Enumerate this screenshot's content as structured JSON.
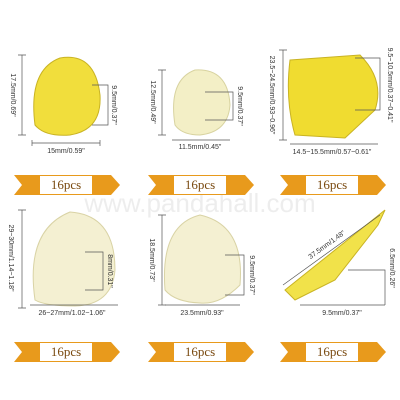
{
  "watermark": "www.pandahall.com",
  "items": [
    {
      "height": "17.5mm/0.69\"",
      "inner": "9.5mm/0.37\"",
      "width": "15mm/0.59\"",
      "count": "16pcs"
    },
    {
      "height": "12.5mm/0.49\"",
      "inner": "9.5mm/0.37\"",
      "width": "11.5mm/0.45\"",
      "count": "16pcs"
    },
    {
      "height": "23.5~24.5mm/0.93~0.96\"",
      "inner": "9.5~10.5mm/0.37~0.41\"",
      "width": "14.5~15.5mm/0.57~0.61\"",
      "count": "16pcs"
    },
    {
      "height": "29~30mm/1.14~1.18\"",
      "inner": "8mm/0.31\"",
      "width": "26~27mm/1.02~1.06\"",
      "count": "16pcs"
    },
    {
      "height": "18.5mm/0.73\"",
      "inner": "9.5mm/0.37\"",
      "width": "23.5mm/0.93\"",
      "count": "16pcs"
    },
    {
      "height": "37.5mm/1.48\"",
      "inner": "6.5mm/0.26\"",
      "width": "9.5mm/0.37\"",
      "count": "16pcs"
    }
  ]
}
